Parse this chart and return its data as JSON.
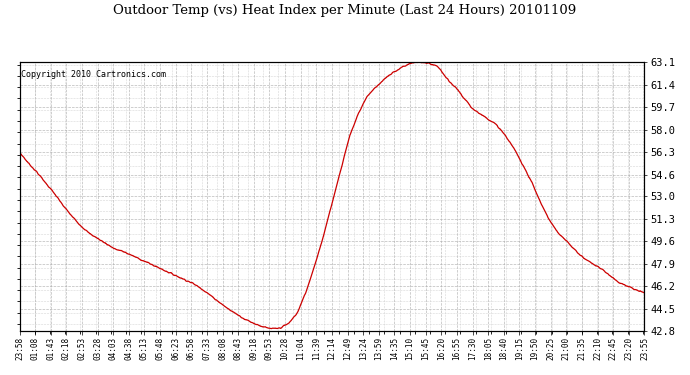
{
  "title": "Outdoor Temp (vs) Heat Index per Minute (Last 24 Hours) 20101109",
  "copyright": "Copyright 2010 Cartronics.com",
  "y_ticks": [
    42.8,
    44.5,
    46.2,
    47.9,
    49.6,
    51.3,
    53.0,
    54.6,
    56.3,
    58.0,
    59.7,
    61.4,
    63.1
  ],
  "ylim": [
    42.8,
    63.1
  ],
  "line_color": "#cc0000",
  "background_color": "#ffffff",
  "plot_bg_color": "#ffffff",
  "x_labels": [
    "23:58",
    "01:08",
    "01:43",
    "02:18",
    "02:53",
    "03:28",
    "04:03",
    "04:38",
    "05:13",
    "05:48",
    "06:23",
    "06:58",
    "07:33",
    "08:08",
    "08:43",
    "09:18",
    "09:53",
    "10:28",
    "11:04",
    "11:39",
    "12:14",
    "12:49",
    "13:24",
    "13:59",
    "14:35",
    "15:10",
    "15:45",
    "16:20",
    "16:55",
    "17:30",
    "18:05",
    "18:40",
    "19:15",
    "19:50",
    "20:25",
    "21:00",
    "21:35",
    "22:10",
    "22:45",
    "23:20",
    "23:55"
  ],
  "waypoints_x": [
    0,
    20,
    40,
    60,
    80,
    100,
    120,
    140,
    160,
    180,
    200,
    220,
    240,
    260,
    280,
    300,
    320,
    340,
    360,
    380,
    400,
    420,
    440,
    460,
    480,
    500,
    520,
    540,
    560,
    570,
    580,
    590,
    600,
    620,
    640,
    660,
    680,
    700,
    720,
    740,
    760,
    780,
    800,
    820,
    840,
    860,
    880,
    900,
    920,
    940,
    960,
    970,
    980,
    990,
    1000,
    1010,
    1020,
    1040,
    1060,
    1080,
    1100,
    1120,
    1140,
    1160,
    1180,
    1200,
    1220,
    1240,
    1260,
    1280,
    1300,
    1320,
    1340,
    1360,
    1380,
    1400,
    1420,
    1439
  ],
  "waypoints_y": [
    56.3,
    55.5,
    54.8,
    54.0,
    53.2,
    52.3,
    51.5,
    50.8,
    50.2,
    49.8,
    49.4,
    49.0,
    48.8,
    48.5,
    48.2,
    47.9,
    47.6,
    47.3,
    47.0,
    46.7,
    46.4,
    46.0,
    45.5,
    45.0,
    44.5,
    44.1,
    43.7,
    43.4,
    43.15,
    43.05,
    43.0,
    43.0,
    43.05,
    43.4,
    44.2,
    45.8,
    47.8,
    50.0,
    52.5,
    55.0,
    57.5,
    59.2,
    60.5,
    61.2,
    61.8,
    62.3,
    62.7,
    63.0,
    63.1,
    63.0,
    62.8,
    62.5,
    62.0,
    61.6,
    61.3,
    61.0,
    60.5,
    59.7,
    59.2,
    58.8,
    58.3,
    57.5,
    56.5,
    55.3,
    54.0,
    52.5,
    51.2,
    50.2,
    49.6,
    48.9,
    48.3,
    47.9,
    47.5,
    47.0,
    46.5,
    46.2,
    45.9,
    45.7
  ]
}
